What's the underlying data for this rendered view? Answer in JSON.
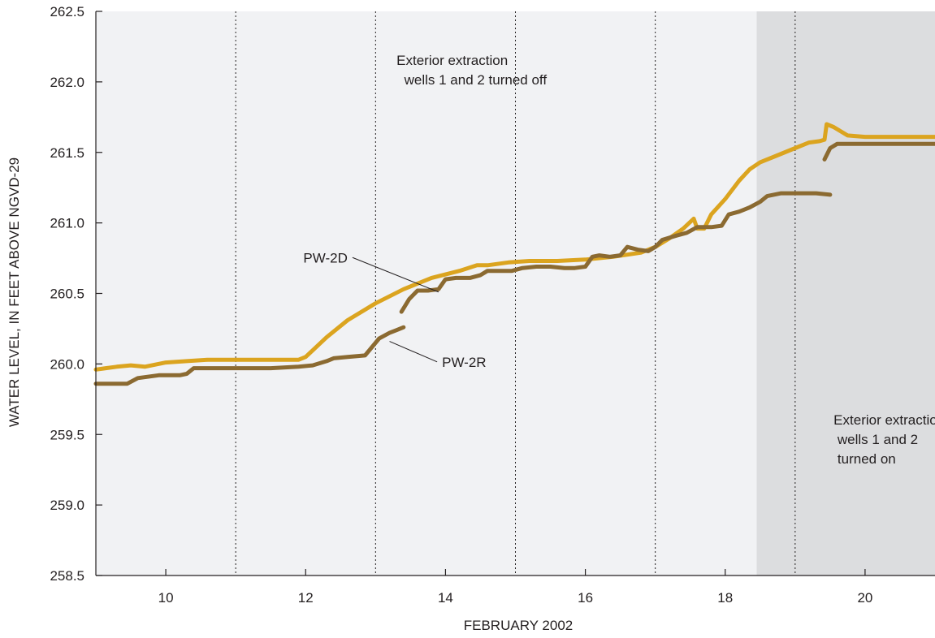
{
  "chart_data": {
    "type": "line",
    "title": "",
    "xlabel": "FEBRUARY 2002",
    "ylabel": "WATER LEVEL, IN FEET ABOVE NGVD-29",
    "xlim": [
      9.0,
      21.0
    ],
    "ylim": [
      258.5,
      262.5
    ],
    "x_ticks": [
      10,
      12,
      14,
      16,
      18,
      20
    ],
    "x_tick_labels": [
      "10",
      "12",
      "14",
      "16",
      "18",
      "20"
    ],
    "y_ticks": [
      258.5,
      259.0,
      259.5,
      260.0,
      260.5,
      261.0,
      261.5,
      262.0,
      262.5
    ],
    "y_tick_labels": [
      "258.5",
      "259.0",
      "259.5",
      "260.0",
      "260.5",
      "261.0",
      "261.5",
      "262.0",
      "262.5"
    ],
    "vertical_gridlines_x": [
      11,
      13,
      15,
      17,
      19
    ],
    "shaded_spans": [
      {
        "x": [
          9.0,
          18.45
        ],
        "color": "#f1f2f4"
      },
      {
        "x": [
          18.45,
          21.0
        ],
        "color": "#dcdddf"
      }
    ],
    "series": [
      {
        "name": "PW-2D",
        "color": "#dba41f",
        "segments": [
          [
            [
              9.0,
              259.96
            ],
            [
              9.3,
              259.98
            ],
            [
              9.5,
              259.99
            ],
            [
              9.7,
              259.98
            ],
            [
              10.0,
              260.01
            ],
            [
              10.3,
              260.02
            ],
            [
              10.6,
              260.03
            ],
            [
              11.0,
              260.03
            ],
            [
              11.5,
              260.03
            ],
            [
              11.9,
              260.03
            ],
            [
              12.0,
              260.05
            ],
            [
              12.3,
              260.19
            ],
            [
              12.6,
              260.31
            ],
            [
              13.0,
              260.43
            ],
            [
              13.4,
              260.53
            ],
            [
              13.8,
              260.61
            ],
            [
              14.2,
              260.66
            ],
            [
              14.45,
              260.7
            ],
            [
              14.6,
              260.7
            ],
            [
              14.9,
              260.72
            ],
            [
              15.2,
              260.73
            ],
            [
              15.6,
              260.73
            ],
            [
              16.0,
              260.74
            ],
            [
              16.4,
              260.76
            ],
            [
              16.8,
              260.79
            ],
            [
              17.0,
              260.83
            ],
            [
              17.2,
              260.89
            ],
            [
              17.4,
              260.96
            ],
            [
              17.55,
              261.03
            ],
            [
              17.6,
              260.96
            ],
            [
              17.7,
              260.96
            ],
            [
              17.8,
              261.06
            ],
            [
              18.0,
              261.17
            ],
            [
              18.2,
              261.3
            ],
            [
              18.35,
              261.38
            ],
            [
              18.5,
              261.43
            ],
            [
              18.7,
              261.47
            ],
            [
              19.0,
              261.53
            ],
            [
              19.2,
              261.57
            ],
            [
              19.35,
              261.58
            ],
            [
              19.42,
              261.59
            ],
            [
              19.45,
              261.7
            ],
            [
              19.55,
              261.68
            ],
            [
              19.75,
              261.62
            ],
            [
              20.0,
              261.61
            ],
            [
              20.5,
              261.61
            ],
            [
              21.0,
              261.61
            ]
          ]
        ]
      },
      {
        "name": "PW-2R",
        "color": "#8b6a31",
        "segments": [
          [
            [
              9.0,
              259.86
            ],
            [
              9.3,
              259.86
            ],
            [
              9.45,
              259.86
            ],
            [
              9.6,
              259.9
            ],
            [
              9.9,
              259.92
            ],
            [
              10.2,
              259.92
            ],
            [
              10.3,
              259.93
            ],
            [
              10.4,
              259.97
            ],
            [
              10.7,
              259.97
            ],
            [
              11.0,
              259.97
            ],
            [
              11.5,
              259.97
            ],
            [
              11.9,
              259.98
            ],
            [
              12.1,
              259.99
            ],
            [
              12.3,
              260.02
            ],
            [
              12.4,
              260.04
            ],
            [
              12.6,
              260.05
            ],
            [
              12.85,
              260.06
            ],
            [
              12.95,
              260.12
            ],
            [
              13.05,
              260.18
            ],
            [
              13.2,
              260.22
            ],
            [
              13.3,
              260.24
            ],
            [
              13.4,
              260.26
            ]
          ],
          [
            [
              13.37,
              260.37
            ],
            [
              13.48,
              260.46
            ],
            [
              13.6,
              260.52
            ],
            [
              13.75,
              260.52
            ],
            [
              13.9,
              260.53
            ],
            [
              14.0,
              260.6
            ],
            [
              14.15,
              260.61
            ],
            [
              14.35,
              260.61
            ],
            [
              14.5,
              260.63
            ],
            [
              14.6,
              260.66
            ],
            [
              14.8,
              260.66
            ],
            [
              14.95,
              260.66
            ],
            [
              15.1,
              260.68
            ],
            [
              15.3,
              260.69
            ],
            [
              15.5,
              260.69
            ],
            [
              15.7,
              260.68
            ],
            [
              15.85,
              260.68
            ],
            [
              16.0,
              260.69
            ],
            [
              16.1,
              260.76
            ],
            [
              16.2,
              260.77
            ],
            [
              16.35,
              260.76
            ],
            [
              16.5,
              260.77
            ],
            [
              16.6,
              260.83
            ],
            [
              16.75,
              260.81
            ],
            [
              16.9,
              260.8
            ],
            [
              17.0,
              260.83
            ],
            [
              17.1,
              260.88
            ],
            [
              17.3,
              260.91
            ],
            [
              17.45,
              260.93
            ],
            [
              17.6,
              260.97
            ],
            [
              17.8,
              260.97
            ],
            [
              17.95,
              260.98
            ],
            [
              18.05,
              261.06
            ],
            [
              18.2,
              261.08
            ],
            [
              18.35,
              261.11
            ],
            [
              18.5,
              261.15
            ],
            [
              18.6,
              261.19
            ],
            [
              18.8,
              261.21
            ],
            [
              19.1,
              261.21
            ],
            [
              19.3,
              261.21
            ],
            [
              19.5,
              261.2
            ]
          ],
          [
            [
              19.42,
              261.45
            ],
            [
              19.5,
              261.53
            ],
            [
              19.6,
              261.56
            ],
            [
              20.0,
              261.56
            ],
            [
              20.5,
              261.56
            ],
            [
              21.0,
              261.56
            ]
          ]
        ]
      }
    ],
    "annotations": [
      {
        "lines": [
          "Exterior extraction",
          "  wells 1 and 2 turned off"
        ],
        "x": 13.3,
        "y": 262.12
      },
      {
        "lines": [
          "Exterior extraction",
          " wells 1 and 2",
          " turned on"
        ],
        "x": 19.55,
        "y": 259.57
      }
    ],
    "series_labels": [
      {
        "text": "PW-2D",
        "x": 12.6,
        "y": 260.72,
        "anchor": "end",
        "leader_to": [
          13.9,
          260.51
        ]
      },
      {
        "text": "PW-2R",
        "x": 13.95,
        "y": 259.98,
        "anchor": "start",
        "leader_to": [
          13.2,
          260.16
        ]
      }
    ]
  }
}
